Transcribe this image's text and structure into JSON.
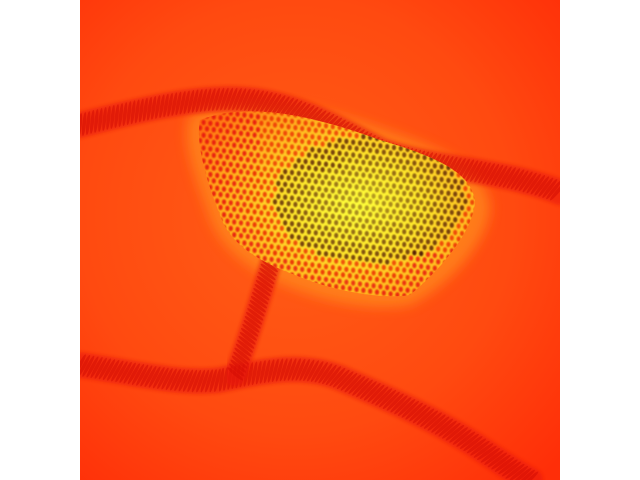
{
  "image": {
    "kind": "false-color heat map micrograph",
    "colors": {
      "background_red": "#ff3a0a",
      "background_orange": "#ff5a14",
      "ridge_red": "#e81808",
      "dot_dark": "#3a0500",
      "patch_yellow": "#ffef2a",
      "patch_orange": "#ff9a1a",
      "margin": "#ffffff"
    }
  }
}
